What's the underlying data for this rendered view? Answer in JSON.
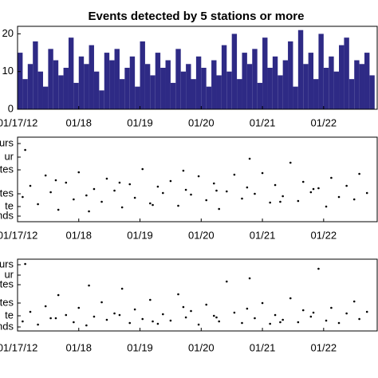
{
  "chart_data": [
    {
      "type": "histogram",
      "title": "Events detected by 5 stations or more",
      "color": "#2e2a85",
      "bins": [
        0,
        2,
        4,
        6,
        8,
        10,
        12,
        14,
        16,
        18,
        20,
        22,
        24,
        26,
        28,
        30,
        32,
        34,
        36,
        38,
        40,
        42,
        44,
        46,
        48,
        50,
        52,
        54,
        56,
        58,
        60,
        62,
        64,
        66,
        68,
        70,
        72,
        74,
        76,
        78,
        80,
        82,
        84,
        86,
        88,
        90,
        92,
        94,
        96,
        98,
        100,
        102,
        104,
        106,
        108,
        110,
        112,
        114,
        116,
        118,
        120,
        122,
        124,
        126,
        128,
        130,
        132,
        134,
        136,
        138,
        140
      ],
      "values": [
        15,
        8,
        12,
        18,
        10,
        6,
        16,
        13,
        9,
        11,
        19,
        7,
        14,
        12,
        17,
        10,
        5,
        15,
        13,
        16,
        8,
        11,
        14,
        6,
        18,
        12,
        9,
        15,
        11,
        13,
        7,
        16,
        10,
        12,
        8,
        14,
        11,
        6,
        13,
        9,
        17,
        10,
        20,
        8,
        15,
        12,
        16,
        7,
        19,
        11,
        14,
        9,
        13,
        18,
        6,
        21,
        12,
        15,
        8,
        20,
        11,
        14,
        10,
        17,
        19,
        8,
        13,
        12,
        15,
        9
      ],
      "xlim": [
        0,
        141
      ],
      "ylim": [
        0,
        22
      ],
      "yticks": [
        0,
        10,
        20
      ],
      "xticks": [
        {
          "value": 0,
          "label": "01/17/12"
        },
        {
          "value": 24,
          "label": "01/18"
        },
        {
          "value": 48,
          "label": "01/19"
        },
        {
          "value": 72,
          "label": "01/20"
        },
        {
          "value": 96,
          "label": "01/21"
        },
        {
          "value": 120,
          "label": "01/22"
        }
      ]
    },
    {
      "type": "scatter",
      "color": "#000000",
      "x": [
        2,
        5,
        8,
        11,
        13,
        16,
        19,
        22,
        24,
        27,
        30,
        33,
        35,
        38,
        41,
        44,
        46,
        49,
        52,
        55,
        57,
        60,
        63,
        66,
        68,
        71,
        74,
        77,
        79,
        82,
        85,
        88,
        90,
        93,
        96,
        99,
        101,
        104,
        107,
        110,
        112,
        115,
        118,
        121,
        123,
        126,
        129,
        132,
        134,
        137,
        3,
        15,
        28,
        40,
        53,
        65,
        78,
        91,
        103,
        116
      ],
      "values": [
        3.1,
        4.5,
        2.2,
        5.8,
        3.7,
        1.5,
        4.9,
        2.8,
        6.2,
        3.3,
        4.1,
        2.5,
        5.4,
        3.9,
        1.8,
        4.7,
        3,
        6.6,
        2.3,
        4.4,
        3.6,
        5.1,
        2,
        4,
        3.4,
        5.7,
        2.7,
        4.8,
        1.6,
        3.8,
        5.9,
        2.9,
        4.3,
        3.5,
        6.1,
        2.4,
        4.6,
        3.2,
        7.4,
        2.6,
        5,
        3.7,
        4.2,
        1.9,
        5.5,
        3.1,
        4.5,
        2.8,
        6,
        3.6,
        9,
        5.2,
        1.3,
        4.9,
        2.1,
        6.4,
        3.9,
        7.9,
        2.5,
        4.1
      ],
      "xlim": [
        0,
        141
      ],
      "ylim": [
        0,
        10.6
      ],
      "yticks": [
        {
          "value": 0.7,
          "label": "nds"
        },
        {
          "value": 1.9,
          "label": "te"
        },
        {
          "value": 3.5,
          "label": "tes"
        },
        {
          "value": 6.5,
          "label": "tes"
        },
        {
          "value": 8.1,
          "label": "ur"
        },
        {
          "value": 9.8,
          "label": "urs"
        }
      ],
      "xticks": [
        {
          "value": 0,
          "label": "01/17/12"
        },
        {
          "value": 24,
          "label": "01/18"
        },
        {
          "value": 48,
          "label": "01/19"
        },
        {
          "value": 72,
          "label": "01/20"
        },
        {
          "value": 96,
          "label": "01/21"
        },
        {
          "value": 120,
          "label": "01/22"
        }
      ]
    },
    {
      "type": "scatter",
      "color": "#000000",
      "x": [
        2,
        5,
        8,
        11,
        13,
        16,
        19,
        22,
        24,
        27,
        30,
        33,
        35,
        38,
        41,
        44,
        46,
        49,
        52,
        55,
        57,
        60,
        63,
        66,
        68,
        71,
        74,
        77,
        79,
        82,
        85,
        88,
        90,
        93,
        96,
        99,
        101,
        104,
        107,
        110,
        112,
        115,
        118,
        121,
        123,
        126,
        129,
        132,
        134,
        137,
        3,
        15,
        28,
        40,
        53,
        65,
        78,
        91,
        103,
        116
      ],
      "values": [
        1.2,
        2.4,
        0.8,
        3.1,
        1.6,
        4.5,
        2,
        1.1,
        2.9,
        0.7,
        1.8,
        3.6,
        1.4,
        2.2,
        5.3,
        1,
        2.7,
        1.5,
        3.9,
        0.9,
        2.1,
        1.3,
        4.6,
        1.7,
        2.5,
        0.8,
        3.3,
        1.9,
        1.2,
        6.2,
        2.3,
        1,
        2.8,
        1.6,
        3.5,
        0.9,
        2,
        1.4,
        4.1,
        1.1,
        2.6,
        1.8,
        7.8,
        1.3,
        2.9,
        1,
        2.2,
        3.7,
        1.5,
        2.4,
        8.4,
        1.6,
        5.7,
        2,
        1.2,
        3,
        1.7,
        6.6,
        1.1,
        2.3
      ],
      "xlim": [
        0,
        141
      ],
      "ylim": [
        0,
        9
      ],
      "yticks": [
        {
          "value": 0.5,
          "label": "nds"
        },
        {
          "value": 1.9,
          "label": "te"
        },
        {
          "value": 3.5,
          "label": "tes"
        },
        {
          "value": 5.8,
          "label": "tes"
        },
        {
          "value": 7,
          "label": "ur"
        },
        {
          "value": 8.3,
          "label": "urs"
        }
      ],
      "xticks": [
        {
          "value": 0,
          "label": "01/17/12"
        },
        {
          "value": 24,
          "label": "01/18"
        },
        {
          "value": 48,
          "label": "01/19"
        },
        {
          "value": 72,
          "label": "01/20"
        },
        {
          "value": 96,
          "label": "01/21"
        },
        {
          "value": 120,
          "label": "01/22"
        }
      ]
    }
  ]
}
